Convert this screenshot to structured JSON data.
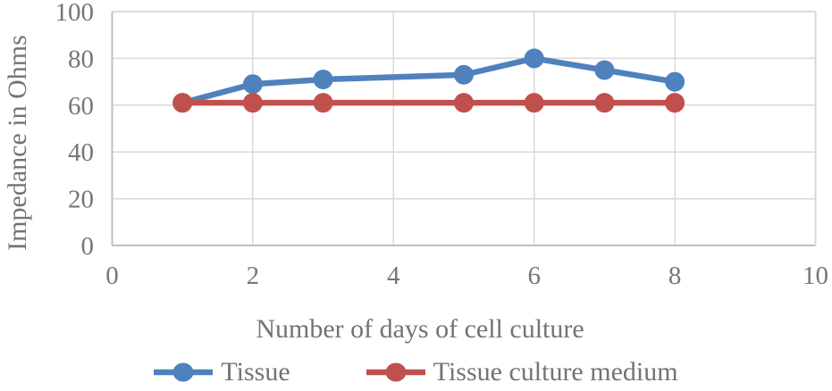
{
  "chart_data": {
    "type": "line",
    "title": "",
    "xlabel": "Number of days of cell culture",
    "ylabel": "Impedance in Ohms",
    "xlim": [
      0,
      10
    ],
    "ylim": [
      0,
      100
    ],
    "xticks": [
      0,
      2,
      4,
      6,
      8,
      10
    ],
    "yticks": [
      0,
      20,
      40,
      60,
      80,
      100
    ],
    "grid": true,
    "legend_position": "bottom",
    "x": [
      1,
      2,
      3,
      5,
      6,
      7,
      8
    ],
    "series": [
      {
        "name": "Tissue",
        "color": "#4F81BD",
        "values": [
          61,
          69,
          71,
          73,
          80,
          75,
          70
        ]
      },
      {
        "name": "Tissue culture medium",
        "color": "#C0504D",
        "values": [
          61,
          61,
          61,
          61,
          61,
          61,
          61
        ]
      }
    ]
  },
  "style_colors": {
    "gridline": "#D9D9D9",
    "axis_line": "#BFBFBF",
    "tick_text": "#767676"
  }
}
